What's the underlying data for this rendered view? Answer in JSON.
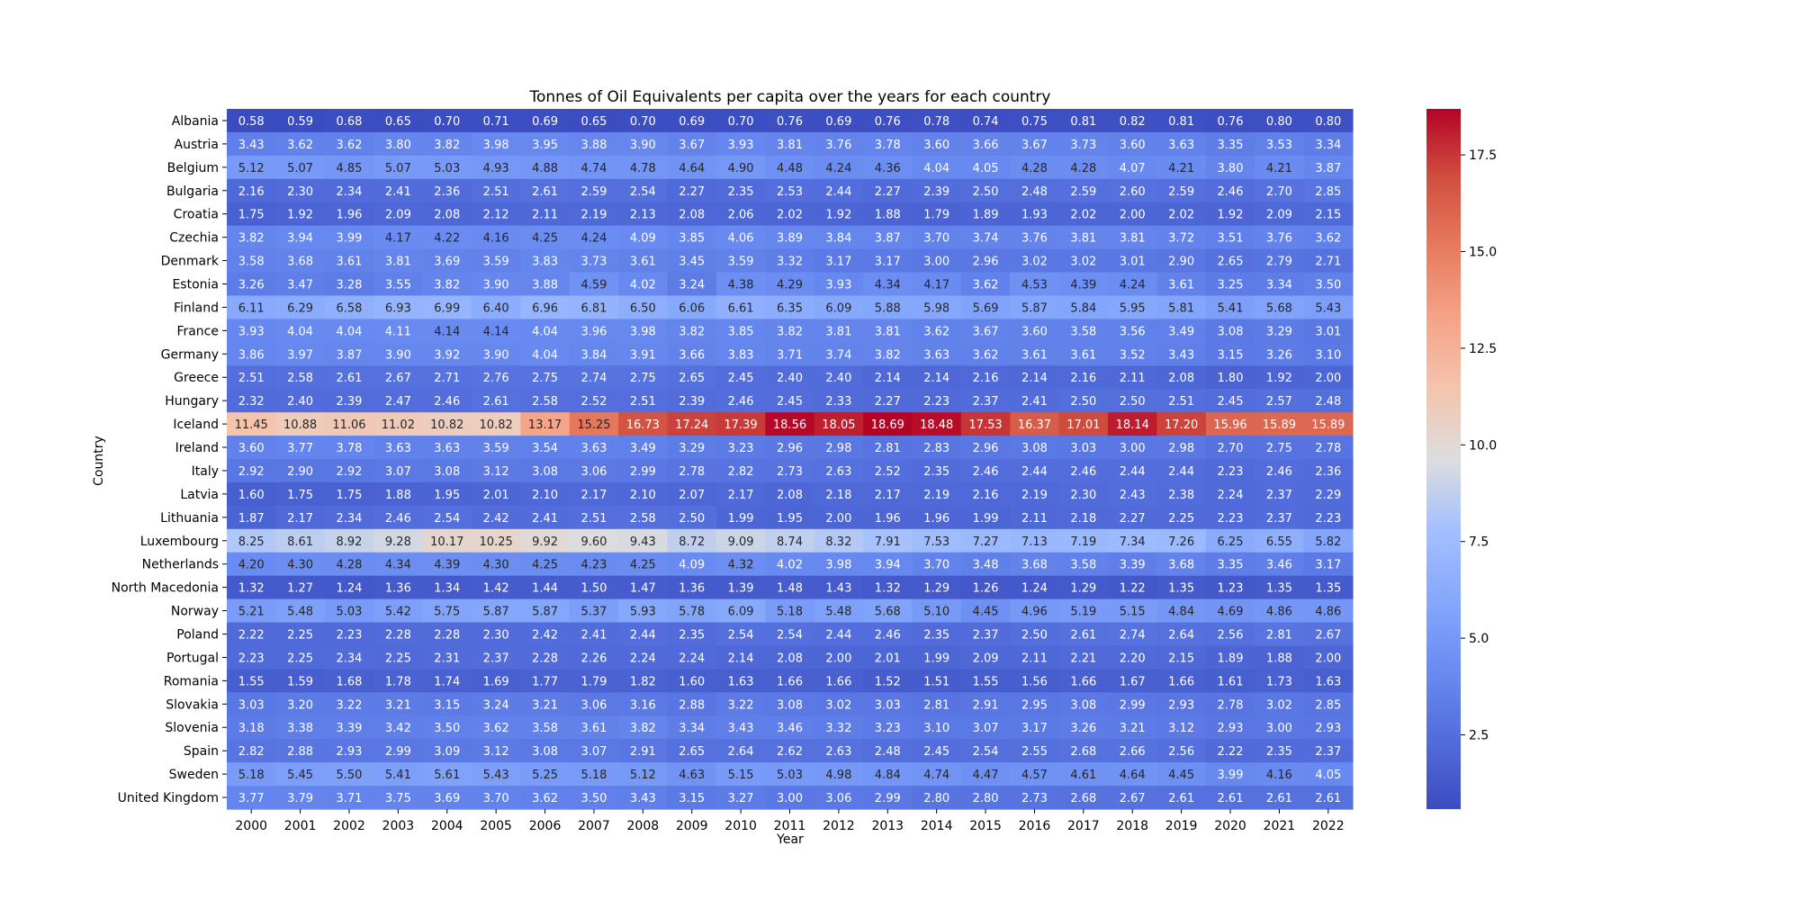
{
  "chart_data": {
    "type": "heatmap",
    "title": "Tonnes of Oil Equivalents per capita over the years for each country",
    "xlabel": "Year",
    "ylabel": "Country",
    "colormap": "coolwarm",
    "vmin": 0.58,
    "vmax": 18.69,
    "colorbar_ticks": [
      2.5,
      5.0,
      7.5,
      10.0,
      12.5,
      15.0,
      17.5
    ],
    "colorbar_tick_labels": [
      "2.5",
      "5.0",
      "7.5",
      "10.0",
      "12.5",
      "15.0",
      "17.5"
    ],
    "years": [
      "2000",
      "2001",
      "2002",
      "2003",
      "2004",
      "2005",
      "2006",
      "2007",
      "2008",
      "2009",
      "2010",
      "2011",
      "2012",
      "2013",
      "2014",
      "2015",
      "2016",
      "2017",
      "2018",
      "2019",
      "2020",
      "2021",
      "2022"
    ],
    "countries": [
      "Albania",
      "Austria",
      "Belgium",
      "Bulgaria",
      "Croatia",
      "Czechia",
      "Denmark",
      "Estonia",
      "Finland",
      "France",
      "Germany",
      "Greece",
      "Hungary",
      "Iceland",
      "Ireland",
      "Italy",
      "Latvia",
      "Lithuania",
      "Luxembourg",
      "Netherlands",
      "North Macedonia",
      "Norway",
      "Poland",
      "Portugal",
      "Romania",
      "Slovakia",
      "Slovenia",
      "Spain",
      "Sweden",
      "United Kingdom"
    ],
    "values": [
      [
        0.58,
        0.59,
        0.68,
        0.65,
        0.7,
        0.71,
        0.69,
        0.65,
        0.7,
        0.69,
        0.7,
        0.76,
        0.69,
        0.76,
        0.78,
        0.74,
        0.75,
        0.81,
        0.82,
        0.81,
        0.76,
        0.8,
        0.8
      ],
      [
        3.43,
        3.62,
        3.62,
        3.8,
        3.82,
        3.98,
        3.95,
        3.88,
        3.9,
        3.67,
        3.93,
        3.81,
        3.76,
        3.78,
        3.6,
        3.66,
        3.67,
        3.73,
        3.6,
        3.63,
        3.35,
        3.53,
        3.34
      ],
      [
        5.12,
        5.07,
        4.85,
        5.07,
        5.03,
        4.93,
        4.88,
        4.74,
        4.78,
        4.64,
        4.9,
        4.48,
        4.24,
        4.36,
        4.04,
        4.05,
        4.28,
        4.28,
        4.07,
        4.21,
        3.8,
        4.21,
        3.87
      ],
      [
        2.16,
        2.3,
        2.34,
        2.41,
        2.36,
        2.51,
        2.61,
        2.59,
        2.54,
        2.27,
        2.35,
        2.53,
        2.44,
        2.27,
        2.39,
        2.5,
        2.48,
        2.59,
        2.6,
        2.59,
        2.46,
        2.7,
        2.85
      ],
      [
        1.75,
        1.92,
        1.96,
        2.09,
        2.08,
        2.12,
        2.11,
        2.19,
        2.13,
        2.08,
        2.06,
        2.02,
        1.92,
        1.88,
        1.79,
        1.89,
        1.93,
        2.02,
        2.0,
        2.02,
        1.92,
        2.09,
        2.15
      ],
      [
        3.82,
        3.94,
        3.99,
        4.17,
        4.22,
        4.16,
        4.25,
        4.24,
        4.09,
        3.85,
        4.06,
        3.89,
        3.84,
        3.87,
        3.7,
        3.74,
        3.76,
        3.81,
        3.81,
        3.72,
        3.51,
        3.76,
        3.62
      ],
      [
        3.58,
        3.68,
        3.61,
        3.81,
        3.69,
        3.59,
        3.83,
        3.73,
        3.61,
        3.45,
        3.59,
        3.32,
        3.17,
        3.17,
        3.0,
        2.96,
        3.02,
        3.02,
        3.01,
        2.9,
        2.65,
        2.79,
        2.71
      ],
      [
        3.26,
        3.47,
        3.28,
        3.55,
        3.82,
        3.9,
        3.88,
        4.59,
        4.02,
        3.24,
        4.38,
        4.29,
        3.93,
        4.34,
        4.17,
        3.62,
        4.53,
        4.39,
        4.24,
        3.61,
        3.25,
        3.34,
        3.5
      ],
      [
        6.11,
        6.29,
        6.58,
        6.93,
        6.99,
        6.4,
        6.96,
        6.81,
        6.5,
        6.06,
        6.61,
        6.35,
        6.09,
        5.88,
        5.98,
        5.69,
        5.87,
        5.84,
        5.95,
        5.81,
        5.41,
        5.68,
        5.43
      ],
      [
        3.93,
        4.04,
        4.04,
        4.11,
        4.14,
        4.14,
        4.04,
        3.96,
        3.98,
        3.82,
        3.85,
        3.82,
        3.81,
        3.81,
        3.62,
        3.67,
        3.6,
        3.58,
        3.56,
        3.49,
        3.08,
        3.29,
        3.01
      ],
      [
        3.86,
        3.97,
        3.87,
        3.9,
        3.92,
        3.9,
        4.04,
        3.84,
        3.91,
        3.66,
        3.83,
        3.71,
        3.74,
        3.82,
        3.63,
        3.62,
        3.61,
        3.61,
        3.52,
        3.43,
        3.15,
        3.26,
        3.1
      ],
      [
        2.51,
        2.58,
        2.61,
        2.67,
        2.71,
        2.76,
        2.75,
        2.74,
        2.75,
        2.65,
        2.45,
        2.4,
        2.4,
        2.14,
        2.14,
        2.16,
        2.14,
        2.16,
        2.11,
        2.08,
        1.8,
        1.92,
        2.0
      ],
      [
        2.32,
        2.4,
        2.39,
        2.47,
        2.46,
        2.61,
        2.58,
        2.52,
        2.51,
        2.39,
        2.46,
        2.45,
        2.33,
        2.27,
        2.23,
        2.37,
        2.41,
        2.5,
        2.5,
        2.51,
        2.45,
        2.57,
        2.48
      ],
      [
        11.45,
        10.88,
        11.06,
        11.02,
        10.82,
        10.82,
        13.17,
        15.25,
        16.73,
        17.24,
        17.39,
        18.56,
        18.05,
        18.69,
        18.48,
        17.53,
        16.37,
        17.01,
        18.14,
        17.2,
        15.96,
        15.89,
        15.89
      ],
      [
        3.6,
        3.77,
        3.78,
        3.63,
        3.63,
        3.59,
        3.54,
        3.63,
        3.49,
        3.29,
        3.23,
        2.96,
        2.98,
        2.81,
        2.83,
        2.96,
        3.08,
        3.03,
        3.0,
        2.98,
        2.7,
        2.75,
        2.78
      ],
      [
        2.92,
        2.9,
        2.92,
        3.07,
        3.08,
        3.12,
        3.08,
        3.06,
        2.99,
        2.78,
        2.82,
        2.73,
        2.63,
        2.52,
        2.35,
        2.46,
        2.44,
        2.46,
        2.44,
        2.44,
        2.23,
        2.46,
        2.36
      ],
      [
        1.6,
        1.75,
        1.75,
        1.88,
        1.95,
        2.01,
        2.1,
        2.17,
        2.1,
        2.07,
        2.17,
        2.08,
        2.18,
        2.17,
        2.19,
        2.16,
        2.19,
        2.3,
        2.43,
        2.38,
        2.24,
        2.37,
        2.29
      ],
      [
        1.87,
        2.17,
        2.34,
        2.46,
        2.54,
        2.42,
        2.41,
        2.51,
        2.58,
        2.5,
        1.99,
        1.95,
        2.0,
        1.96,
        1.96,
        1.99,
        2.11,
        2.18,
        2.27,
        2.25,
        2.23,
        2.37,
        2.23
      ],
      [
        8.25,
        8.61,
        8.92,
        9.28,
        10.17,
        10.25,
        9.92,
        9.6,
        9.43,
        8.72,
        9.09,
        8.74,
        8.32,
        7.91,
        7.53,
        7.27,
        7.13,
        7.19,
        7.34,
        7.26,
        6.25,
        6.55,
        5.82
      ],
      [
        4.2,
        4.3,
        4.28,
        4.34,
        4.39,
        4.3,
        4.25,
        4.23,
        4.25,
        4.09,
        4.32,
        4.02,
        3.98,
        3.94,
        3.7,
        3.48,
        3.68,
        3.58,
        3.39,
        3.68,
        3.35,
        3.46,
        3.17
      ],
      [
        1.32,
        1.27,
        1.24,
        1.36,
        1.34,
        1.42,
        1.44,
        1.5,
        1.47,
        1.36,
        1.39,
        1.48,
        1.43,
        1.32,
        1.29,
        1.26,
        1.24,
        1.29,
        1.22,
        1.35,
        1.23,
        1.35,
        1.35
      ],
      [
        5.21,
        5.48,
        5.03,
        5.42,
        5.75,
        5.87,
        5.87,
        5.37,
        5.93,
        5.78,
        6.09,
        5.18,
        5.48,
        5.68,
        5.1,
        4.45,
        4.96,
        5.19,
        5.15,
        4.84,
        4.69,
        4.86,
        4.86
      ],
      [
        2.22,
        2.25,
        2.23,
        2.28,
        2.28,
        2.3,
        2.42,
        2.41,
        2.44,
        2.35,
        2.54,
        2.54,
        2.44,
        2.46,
        2.35,
        2.37,
        2.5,
        2.61,
        2.74,
        2.64,
        2.56,
        2.81,
        2.67
      ],
      [
        2.23,
        2.25,
        2.34,
        2.25,
        2.31,
        2.37,
        2.28,
        2.26,
        2.24,
        2.24,
        2.14,
        2.08,
        2.0,
        2.01,
        1.99,
        2.09,
        2.11,
        2.21,
        2.2,
        2.15,
        1.89,
        1.88,
        2.0
      ],
      [
        1.55,
        1.59,
        1.68,
        1.78,
        1.74,
        1.69,
        1.77,
        1.79,
        1.82,
        1.6,
        1.63,
        1.66,
        1.66,
        1.52,
        1.51,
        1.55,
        1.56,
        1.66,
        1.67,
        1.66,
        1.61,
        1.73,
        1.63
      ],
      [
        3.03,
        3.2,
        3.22,
        3.21,
        3.15,
        3.24,
        3.21,
        3.06,
        3.16,
        2.88,
        3.22,
        3.08,
        3.02,
        3.03,
        2.81,
        2.91,
        2.95,
        3.08,
        2.99,
        2.93,
        2.78,
        3.02,
        2.85
      ],
      [
        3.18,
        3.38,
        3.39,
        3.42,
        3.5,
        3.62,
        3.58,
        3.61,
        3.82,
        3.34,
        3.43,
        3.46,
        3.32,
        3.23,
        3.1,
        3.07,
        3.17,
        3.26,
        3.21,
        3.12,
        2.93,
        3.0,
        2.93
      ],
      [
        2.82,
        2.88,
        2.93,
        2.99,
        3.09,
        3.12,
        3.08,
        3.07,
        2.91,
        2.65,
        2.64,
        2.62,
        2.63,
        2.48,
        2.45,
        2.54,
        2.55,
        2.68,
        2.66,
        2.56,
        2.22,
        2.35,
        2.37
      ],
      [
        5.18,
        5.45,
        5.5,
        5.41,
        5.61,
        5.43,
        5.25,
        5.18,
        5.12,
        4.63,
        5.15,
        5.03,
        4.98,
        4.84,
        4.74,
        4.47,
        4.57,
        4.61,
        4.64,
        4.45,
        3.99,
        4.16,
        4.05
      ],
      [
        3.77,
        3.79,
        3.71,
        3.75,
        3.69,
        3.7,
        3.62,
        3.5,
        3.43,
        3.15,
        3.27,
        3.0,
        3.06,
        2.99,
        2.8,
        2.8,
        2.73,
        2.68,
        2.67,
        2.61,
        2.61,
        2.61,
        2.61
      ]
    ]
  }
}
